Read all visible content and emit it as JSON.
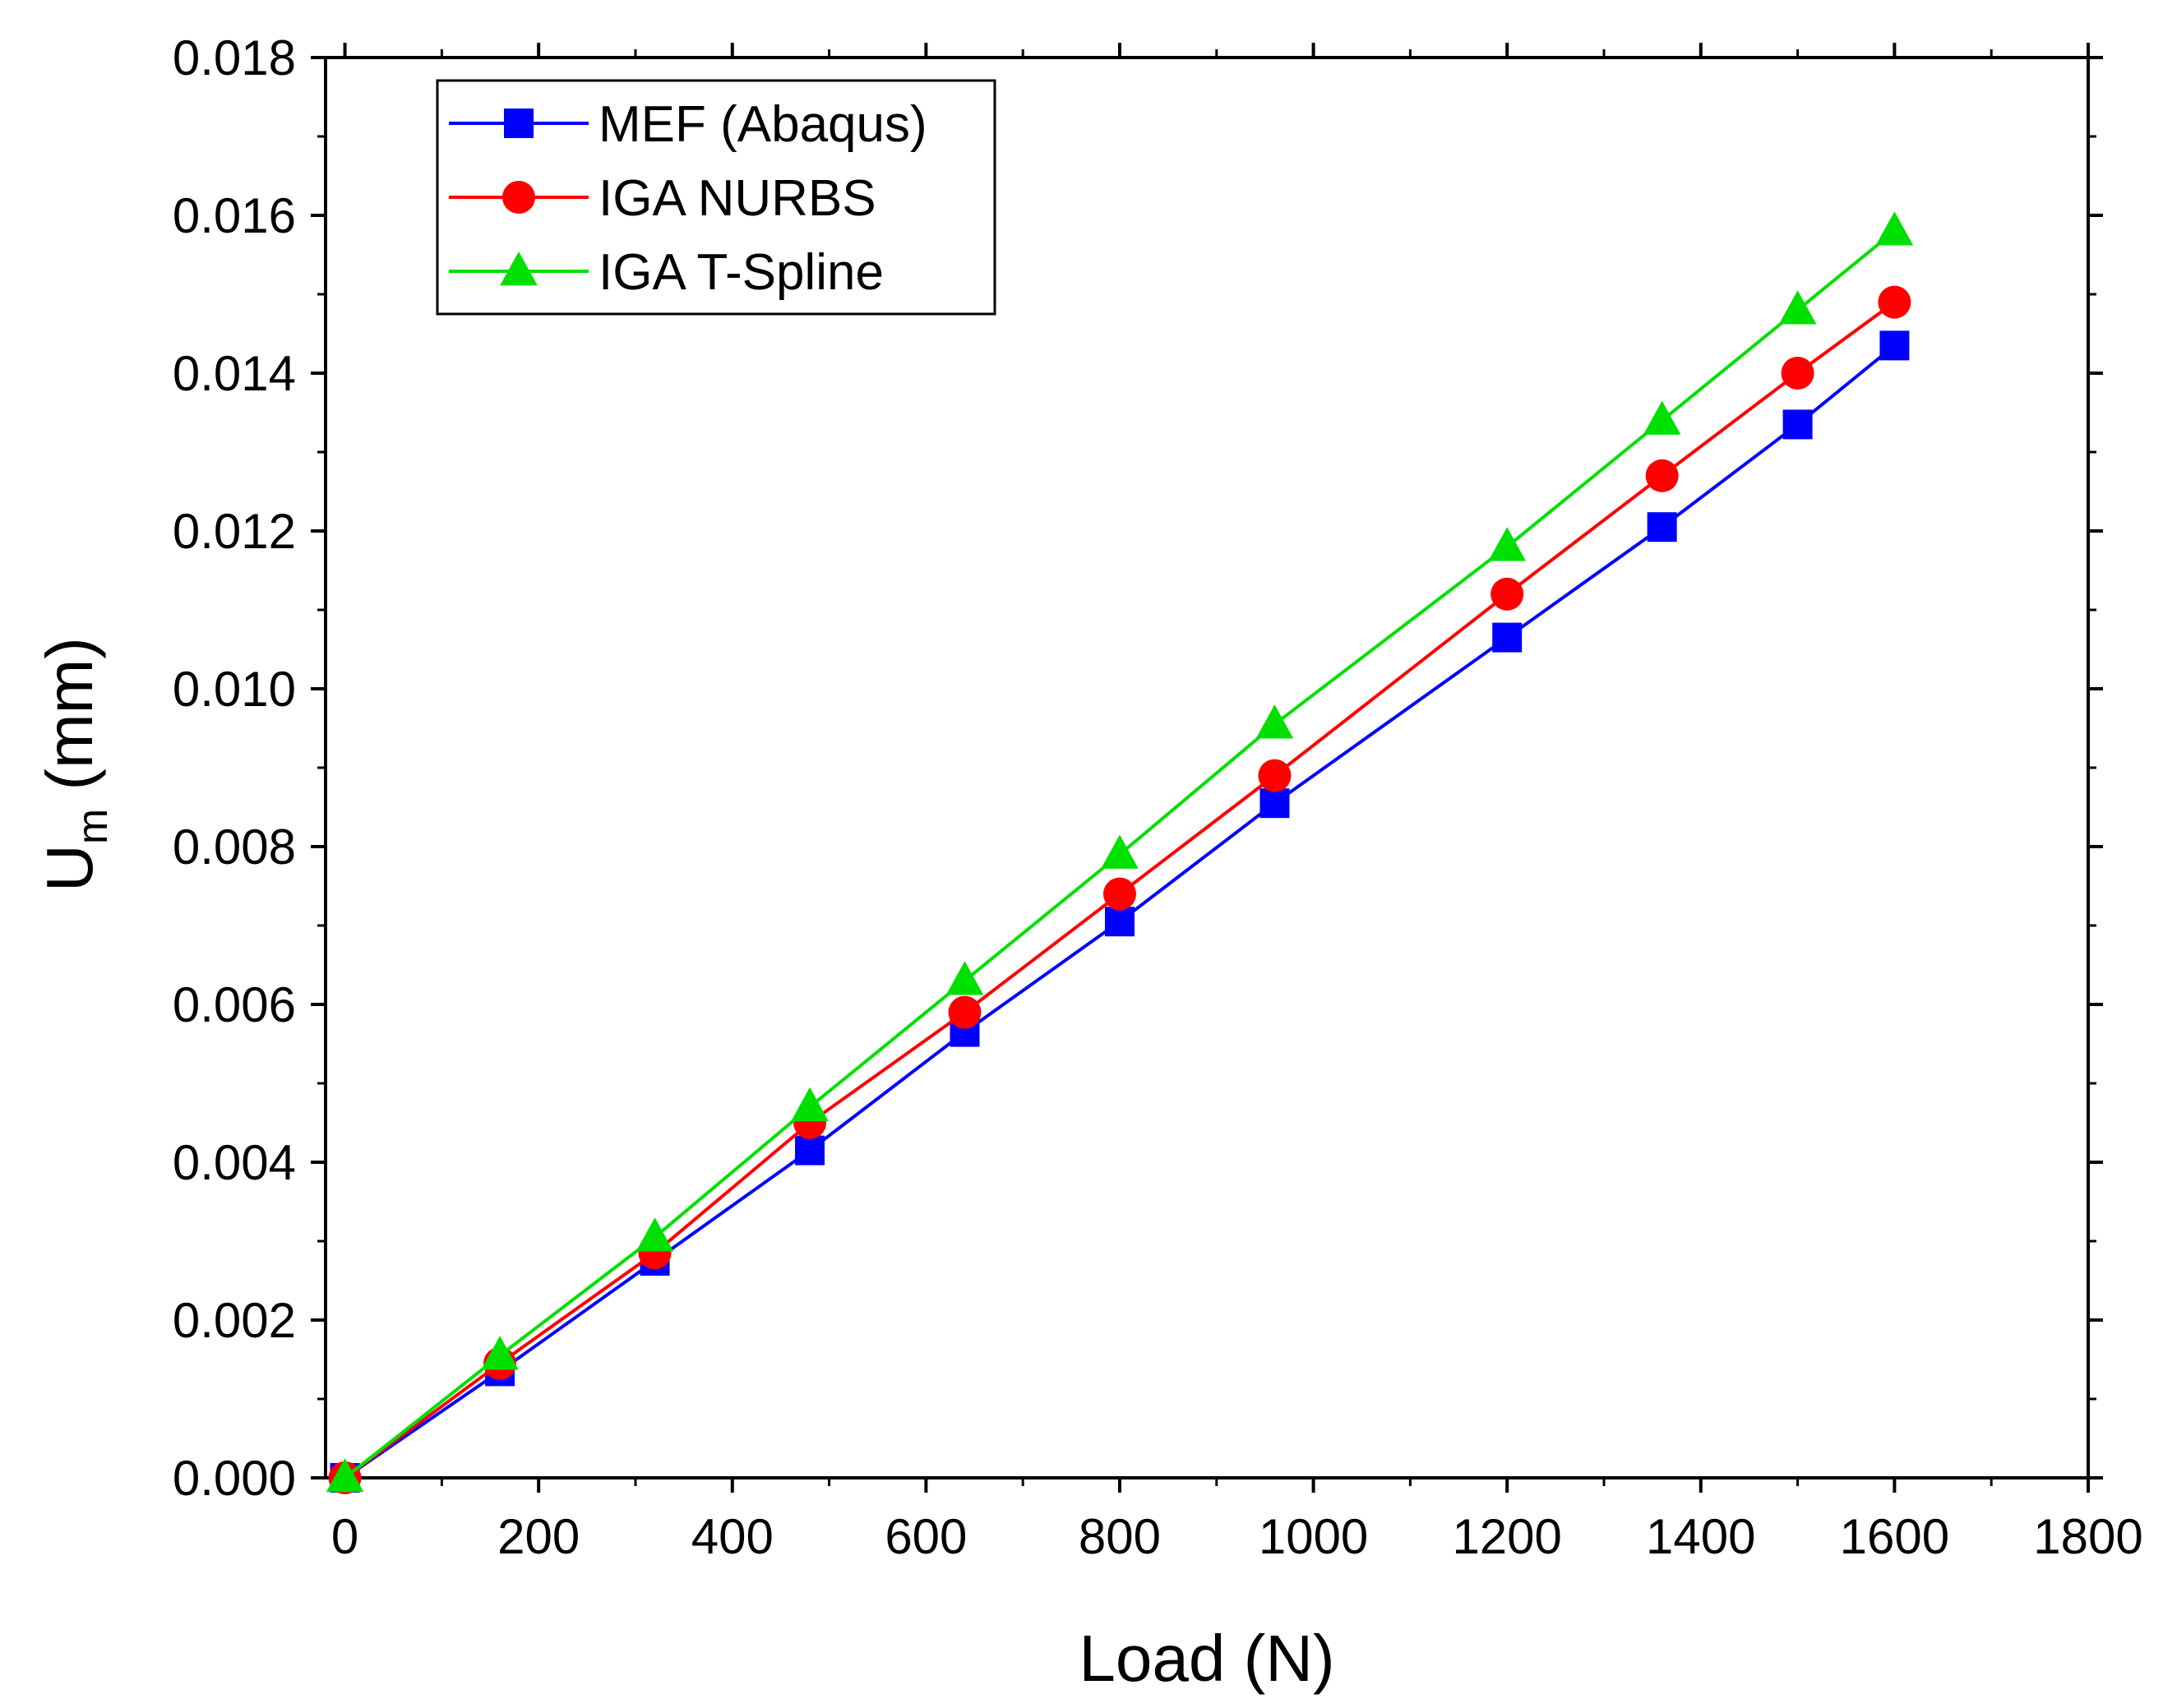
{
  "chart_data": {
    "type": "line",
    "title": "",
    "xlabel": "Load (N)",
    "ylabel_main": "U",
    "ylabel_sub": "m",
    "ylabel_unit": " (mm)",
    "xlim": [
      -20,
      1800
    ],
    "ylim": [
      0.0,
      0.018
    ],
    "x_ticks": [
      0,
      200,
      400,
      600,
      800,
      1000,
      1200,
      1400,
      1600,
      1800
    ],
    "x_tick_labels": [
      "0",
      "200",
      "400",
      "600",
      "800",
      "1000",
      "1200",
      "1400",
      "1600",
      "1800"
    ],
    "y_ticks": [
      0.0,
      0.002,
      0.004,
      0.006,
      0.008,
      0.01,
      0.012,
      0.014,
      0.016,
      0.018
    ],
    "y_tick_labels": [
      "0.000",
      "0.002",
      "0.004",
      "0.006",
      "0.008",
      "0.010",
      "0.012",
      "0.014",
      "0.016",
      "0.018"
    ],
    "grid": false,
    "legend_position": "top-left",
    "x": [
      0,
      160,
      320,
      480,
      640,
      800,
      960,
      1200,
      1360,
      1500,
      1600
    ],
    "series": [
      {
        "name": "MEF (Abaqus)",
        "color": "#0000ff",
        "marker": "square",
        "values": [
          0.0,
          0.00135,
          0.00275,
          0.00415,
          0.00565,
          0.00705,
          0.00855,
          0.01065,
          0.01205,
          0.01335,
          0.01435
        ]
      },
      {
        "name": "IGA NURBS",
        "color": "#ff0000",
        "marker": "circle",
        "values": [
          0.0,
          0.00145,
          0.00285,
          0.0045,
          0.0059,
          0.0074,
          0.0089,
          0.0112,
          0.0127,
          0.014,
          0.0149
        ]
      },
      {
        "name": "IGA T-Spline",
        "color": "#00e000",
        "marker": "triangle",
        "values": [
          0.0,
          0.00155,
          0.00305,
          0.0047,
          0.0063,
          0.0079,
          0.00955,
          0.0118,
          0.0134,
          0.0148,
          0.0158
        ]
      }
    ]
  }
}
